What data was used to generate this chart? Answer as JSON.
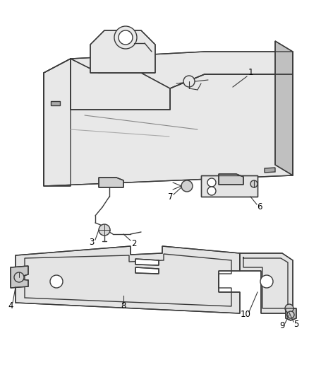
{
  "background_color": "#ffffff",
  "line_color": "#3a3a3a",
  "label_color": "#000000",
  "fig_width": 4.38,
  "fig_height": 5.33,
  "dpi": 100,
  "tank_fill": "#e8e8e8",
  "tank_side_fill": "#d0d0d0",
  "tank_dark_fill": "#c0c0c0",
  "shield_fill": "#e4e4e4"
}
